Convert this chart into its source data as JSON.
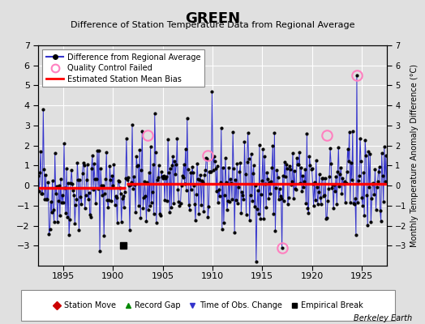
{
  "title": "GREEN",
  "subtitle": "Difference of Station Temperature Data from Regional Average",
  "ylabel_right": "Monthly Temperature Anomaly Difference (°C)",
  "xlim": [
    1892.5,
    1927.5
  ],
  "ylim": [
    -4,
    7
  ],
  "yticks_left": [
    -3,
    -2,
    -1,
    0,
    1,
    2,
    3,
    4,
    5,
    6,
    7
  ],
  "yticks_right": [
    -3,
    -2,
    -1,
    0,
    1,
    2,
    3,
    4,
    5,
    6,
    7
  ],
  "xticks": [
    1895,
    1900,
    1905,
    1910,
    1915,
    1920,
    1925
  ],
  "background_color": "#e0e0e0",
  "plot_background": "#e0e0e0",
  "grid_color": "#ffffff",
  "line_color": "#3333cc",
  "bias_color": "#ff0000",
  "bias_value_early": -0.12,
  "bias_value_late": 0.08,
  "bias_break_year": 1901.3,
  "empirical_break_x": 1901.0,
  "empirical_break_y": -3.0,
  "qc_failed": [
    [
      1903.5,
      2.5
    ],
    [
      1909.5,
      1.5
    ],
    [
      1917.0,
      -3.1
    ],
    [
      1921.5,
      2.5
    ],
    [
      1924.5,
      5.5
    ]
  ],
  "berkeley_earth_text": "Berkeley Earth",
  "seed": 42,
  "start_year": 1892.5,
  "end_year": 1927.5,
  "spike_1893": [
    1893.0,
    3.8
  ],
  "spike_1904": [
    1904.2,
    3.6
  ]
}
